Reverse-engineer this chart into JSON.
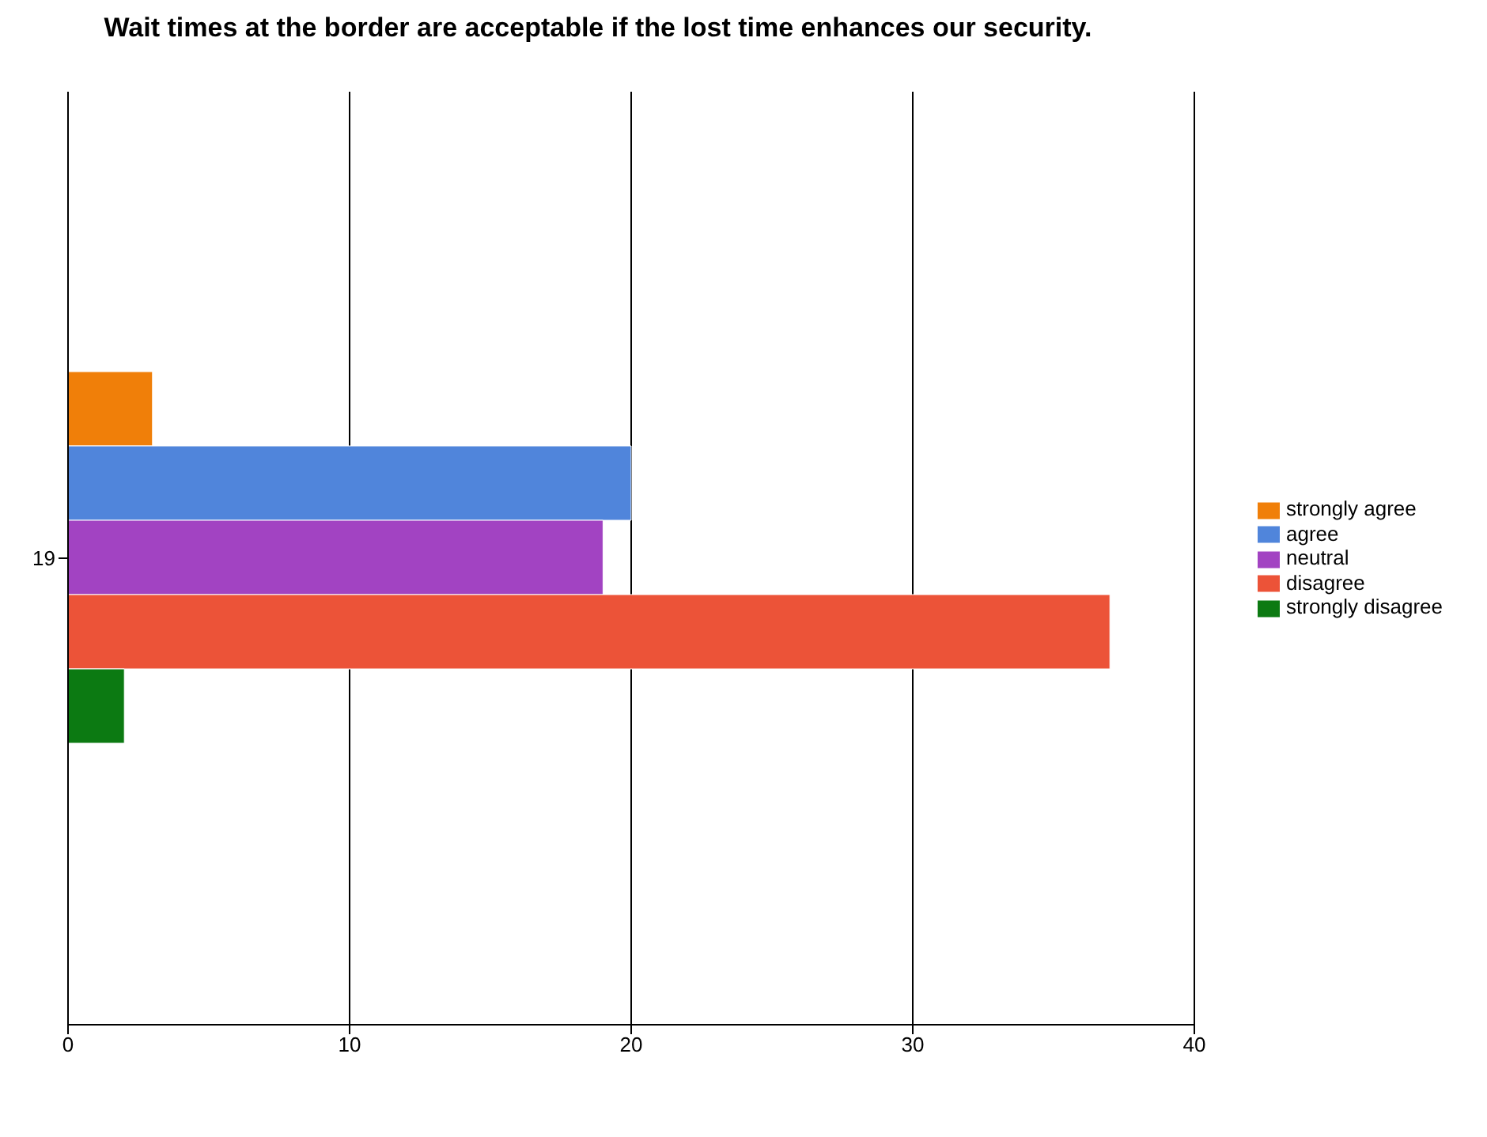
{
  "chart_data": {
    "type": "bar",
    "title": "Wait times at the border are acceptable if the lost time enhances our security.",
    "orientation": "horizontal",
    "categories": [
      "19"
    ],
    "series": [
      {
        "name": "strongly agree",
        "color": "#f07f09",
        "values": [
          3
        ]
      },
      {
        "name": "agree",
        "color": "#5085db",
        "values": [
          20
        ]
      },
      {
        "name": "neutral",
        "color": "#a243c2",
        "values": [
          19
        ]
      },
      {
        "name": "disagree",
        "color": "#ec5338",
        "values": [
          37
        ]
      },
      {
        "name": "strongly disagree",
        "color": "#0c7a12",
        "values": [
          2
        ]
      }
    ],
    "xlim": [
      0,
      40
    ],
    "xticks": [
      0,
      10,
      20,
      30,
      40
    ],
    "grid": "x",
    "legend": "right"
  }
}
